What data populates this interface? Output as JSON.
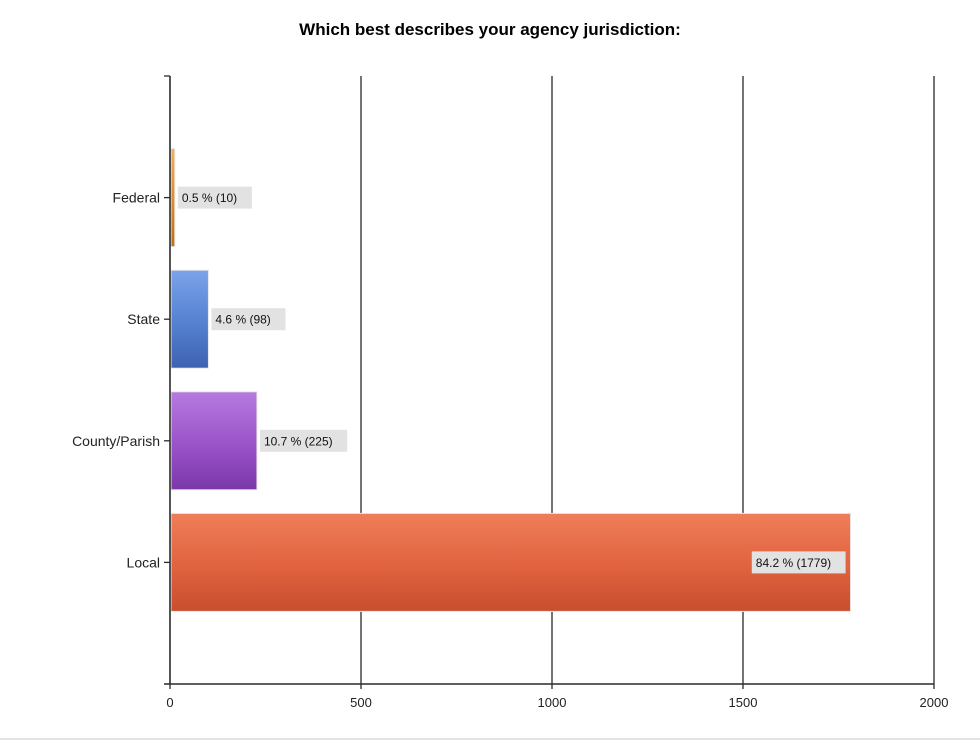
{
  "chart_data": {
    "type": "bar",
    "orientation": "horizontal",
    "title": "Which best describes your agency jurisdiction:",
    "xlabel": "",
    "ylabel": "",
    "xlim": [
      0,
      2000
    ],
    "x_ticks": [
      "0",
      "500",
      "1000",
      "1500",
      "2000"
    ],
    "grid": "vertical",
    "categories": [
      "Federal",
      "State",
      "County/Parish",
      "Local"
    ],
    "values": [
      10,
      98,
      225,
      1779
    ],
    "data_labels": [
      "0.5 % (10)",
      "4.6 % (98)",
      "10.7 % (225)",
      "84.2 % (1779)"
    ],
    "colors": [
      "#e08a2e",
      "#5580d0",
      "#9a52c8",
      "#e0623f"
    ],
    "colors_light": [
      "#f0b060",
      "#7ba3ea",
      "#b57ae0",
      "#ef7e58"
    ],
    "colors_dark": [
      "#c06f18",
      "#3d62b0",
      "#7a38a8",
      "#c84e2e"
    ]
  }
}
